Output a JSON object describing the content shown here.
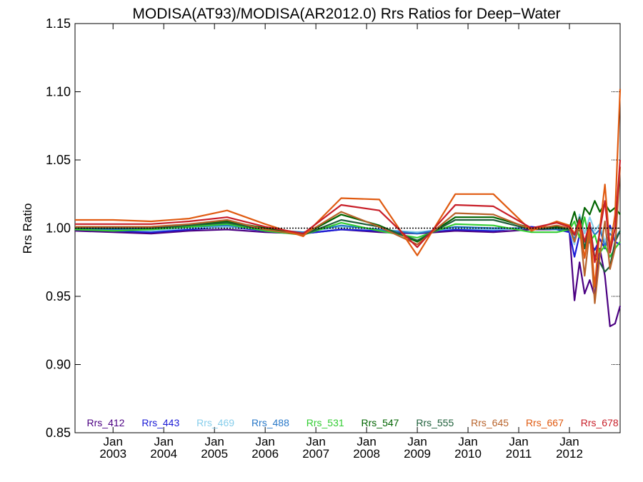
{
  "chart_data": {
    "type": "line",
    "title": "MODISA(AT93)/MODISA(AR2012.0)  Rrs Ratios for Deep−Water",
    "ylabel": "Rrs Ratio",
    "xlabel": "",
    "ylim": [
      0.85,
      1.15
    ],
    "xlim": [
      2002.25,
      2013.0
    ],
    "yticks": [
      0.85,
      0.9,
      0.95,
      1.0,
      1.05,
      1.1,
      1.15
    ],
    "ytick_labels": [
      "0.85",
      "0.90",
      "0.95",
      "1.00",
      "1.05",
      "1.10",
      "1.15"
    ],
    "xticks": [
      {
        "value": 2003.0,
        "month": "Jan",
        "year": "2003"
      },
      {
        "value": 2004.0,
        "month": "Jan",
        "year": "2004"
      },
      {
        "value": 2005.0,
        "month": "Jan",
        "year": "2005"
      },
      {
        "value": 2006.0,
        "month": "Jan",
        "year": "2006"
      },
      {
        "value": 2007.0,
        "month": "Jan",
        "year": "2007"
      },
      {
        "value": 2008.0,
        "month": "Jan",
        "year": "2008"
      },
      {
        "value": 2009.0,
        "month": "Jan",
        "year": "2009"
      },
      {
        "value": 2010.0,
        "month": "Jan",
        "year": "2010"
      },
      {
        "value": 2011.0,
        "month": "Jan",
        "year": "2011"
      },
      {
        "value": 2012.0,
        "month": "Jan",
        "year": "2012"
      }
    ],
    "reference_line": 1.0,
    "grid": false,
    "legend_position": "bottom",
    "series": [
      {
        "name": "Rrs_412",
        "color": "#4b0082",
        "x": [
          2002.25,
          2003.0,
          2003.75,
          2004.5,
          2005.25,
          2006.0,
          2006.75,
          2007.5,
          2008.25,
          2009.0,
          2009.75,
          2010.5,
          2011.25,
          2011.75,
          2012.0,
          2012.1,
          2012.2,
          2012.3,
          2012.4,
          2012.5,
          2012.6,
          2012.7,
          2012.8,
          2012.9,
          2013.0
        ],
        "y": [
          0.998,
          0.997,
          0.996,
          0.998,
          0.999,
          0.997,
          0.996,
          0.999,
          0.997,
          0.996,
          0.998,
          0.997,
          0.999,
          0.999,
          0.998,
          0.947,
          0.975,
          0.952,
          0.962,
          0.95,
          0.985,
          0.965,
          0.928,
          0.93,
          0.943
        ]
      },
      {
        "name": "Rrs_443",
        "color": "#1a1ad6",
        "x": [
          2002.25,
          2003.0,
          2003.75,
          2004.5,
          2005.25,
          2006.0,
          2006.75,
          2007.5,
          2008.25,
          2009.0,
          2009.75,
          2010.5,
          2011.25,
          2011.75,
          2012.0,
          2012.1,
          2012.2,
          2012.3,
          2012.4,
          2012.5,
          2012.6,
          2012.7,
          2012.8,
          2012.9,
          2013.0
        ],
        "y": [
          0.999,
          0.998,
          0.997,
          0.999,
          1.001,
          0.998,
          0.996,
          0.999,
          0.998,
          0.997,
          0.999,
          0.998,
          1.001,
          0.999,
          0.997,
          0.979,
          0.995,
          0.986,
          0.99,
          0.984,
          0.992,
          0.985,
          1.002,
          0.99,
          0.988
        ]
      },
      {
        "name": "Rrs_469",
        "color": "#87ceeb",
        "x": [
          2002.25,
          2003.0,
          2003.75,
          2004.5,
          2005.25,
          2006.0,
          2006.75,
          2007.5,
          2008.25,
          2009.0,
          2009.75,
          2010.5,
          2011.25,
          2011.75,
          2012.0,
          2012.1,
          2012.2,
          2012.3,
          2012.4,
          2012.5,
          2012.6,
          2012.7,
          2012.8,
          2012.9,
          2013.0
        ],
        "y": [
          0.999,
          0.999,
          0.998,
          1.0,
          1.001,
          0.999,
          0.997,
          1.001,
          0.999,
          0.997,
          1.0,
          0.999,
          1.0,
          0.999,
          0.999,
          0.988,
          1.01,
          0.996,
          1.008,
          0.998,
          1.003,
          0.99,
          1.0,
          0.993,
          0.998
        ]
      },
      {
        "name": "Rrs_488",
        "color": "#2878c8",
        "x": [
          2002.25,
          2003.0,
          2003.75,
          2004.5,
          2005.25,
          2006.0,
          2006.75,
          2007.5,
          2008.25,
          2009.0,
          2009.75,
          2010.5,
          2011.25,
          2011.75,
          2012.0,
          2012.1,
          2012.2,
          2012.3,
          2012.4,
          2012.5,
          2012.6,
          2012.7,
          2012.8,
          2012.9,
          2013.0
        ],
        "y": [
          0.999,
          0.999,
          0.999,
          1.001,
          1.002,
          0.999,
          0.997,
          1.002,
          0.999,
          0.996,
          1.001,
          1.0,
          1.0,
          0.999,
          0.999,
          0.992,
          1.004,
          0.99,
          1.002,
          0.995,
          0.999,
          0.987,
          0.996,
          0.992,
          0.998
        ]
      },
      {
        "name": "Rrs_531",
        "color": "#32cd32",
        "x": [
          2002.25,
          2003.0,
          2003.75,
          2004.5,
          2005.25,
          2006.0,
          2006.75,
          2007.5,
          2008.25,
          2009.0,
          2009.75,
          2010.5,
          2011.25,
          2011.75,
          2012.0,
          2012.1,
          2012.2,
          2012.3,
          2012.4,
          2012.5,
          2012.6,
          2012.7,
          2012.8,
          2012.9,
          2013.0
        ],
        "y": [
          0.999,
          0.998,
          0.999,
          1.001,
          1.003,
          0.998,
          0.995,
          1.004,
          0.998,
          0.993,
          1.003,
          1.002,
          0.997,
          0.997,
          0.999,
          1.005,
          0.993,
          1.008,
          0.99,
          0.995,
          0.982,
          0.987,
          0.979,
          0.985,
          0.99
        ]
      },
      {
        "name": "Rrs_547",
        "color": "#006400",
        "x": [
          2002.25,
          2003.0,
          2003.75,
          2004.5,
          2005.25,
          2006.0,
          2006.75,
          2007.5,
          2008.25,
          2009.0,
          2009.75,
          2010.5,
          2011.25,
          2011.75,
          2012.0,
          2012.1,
          2012.2,
          2012.3,
          2012.4,
          2012.5,
          2012.6,
          2012.7,
          2012.8,
          2012.9,
          2013.0
        ],
        "y": [
          1.001,
          1.001,
          1.001,
          1.002,
          1.005,
          1.0,
          0.995,
          1.01,
          1.002,
          0.99,
          1.008,
          1.008,
          1.0,
          1.001,
          1.0,
          1.012,
          0.998,
          1.015,
          1.01,
          1.02,
          1.012,
          1.018,
          1.012,
          1.015,
          1.01
        ]
      },
      {
        "name": "Rrs_555",
        "color": "#1e5f3a",
        "x": [
          2002.25,
          2003.0,
          2003.75,
          2004.5,
          2005.25,
          2006.0,
          2006.75,
          2007.5,
          2008.25,
          2009.0,
          2009.75,
          2010.5,
          2011.25,
          2011.75,
          2012.0,
          2012.1,
          2012.2,
          2012.3,
          2012.4,
          2012.5,
          2012.6,
          2012.7,
          2012.8,
          2012.9,
          2013.0
        ],
        "y": [
          1.0,
          1.0,
          1.0,
          1.002,
          1.004,
          0.999,
          0.995,
          1.006,
          1.001,
          0.991,
          1.006,
          1.006,
          0.999,
          1.0,
          0.999,
          0.995,
          1.008,
          0.985,
          1.003,
          0.978,
          0.975,
          0.968,
          0.972,
          0.99,
          0.998
        ]
      },
      {
        "name": "Rrs_645",
        "color": "#b8632b",
        "x": [
          2002.25,
          2003.0,
          2003.75,
          2004.5,
          2005.25,
          2006.0,
          2006.75,
          2007.5,
          2008.25,
          2009.0,
          2009.75,
          2010.5,
          2011.25,
          2011.75,
          2012.0,
          2012.1,
          2012.2,
          2012.3,
          2012.4,
          2012.5,
          2012.6,
          2012.7,
          2012.8,
          2012.9,
          2013.0
        ],
        "y": [
          1.001,
          1.001,
          1.001,
          1.003,
          1.006,
          0.999,
          0.995,
          1.012,
          1.001,
          0.988,
          1.011,
          1.01,
          0.999,
          1.002,
          1.0,
          0.99,
          1.002,
          0.965,
          0.998,
          0.945,
          0.98,
          1.005,
          0.97,
          0.985,
          1.045
        ]
      },
      {
        "name": "Rrs_667",
        "color": "#e05a10",
        "x": [
          2002.25,
          2003.0,
          2003.75,
          2004.5,
          2005.25,
          2006.0,
          2006.75,
          2007.5,
          2008.25,
          2009.0,
          2009.75,
          2010.5,
          2011.25,
          2011.75,
          2012.0,
          2012.1,
          2012.2,
          2012.3,
          2012.4,
          2012.5,
          2012.6,
          2012.7,
          2012.8,
          2012.9,
          2013.0
        ],
        "y": [
          1.006,
          1.006,
          1.005,
          1.007,
          1.013,
          1.003,
          0.994,
          1.022,
          1.021,
          0.98,
          1.025,
          1.025,
          0.998,
          1.005,
          1.002,
          0.996,
          1.004,
          0.978,
          1.002,
          0.957,
          1.0,
          1.032,
          0.985,
          1.01,
          1.102
        ]
      },
      {
        "name": "Rrs_678",
        "color": "#c81e28",
        "x": [
          2002.25,
          2003.0,
          2003.75,
          2004.5,
          2005.25,
          2006.0,
          2006.75,
          2007.5,
          2008.25,
          2009.0,
          2009.75,
          2010.5,
          2011.25,
          2011.75,
          2012.0,
          2012.1,
          2012.2,
          2012.3,
          2012.4,
          2012.5,
          2012.6,
          2012.7,
          2012.8,
          2012.9,
          2013.0
        ],
        "y": [
          1.003,
          1.003,
          1.003,
          1.005,
          1.008,
          1.001,
          0.996,
          1.017,
          1.013,
          0.986,
          1.017,
          1.016,
          1.0,
          1.004,
          1.001,
          0.995,
          1.006,
          0.99,
          1.004,
          0.975,
          0.998,
          1.02,
          0.982,
          1.0,
          1.05
        ]
      }
    ]
  }
}
